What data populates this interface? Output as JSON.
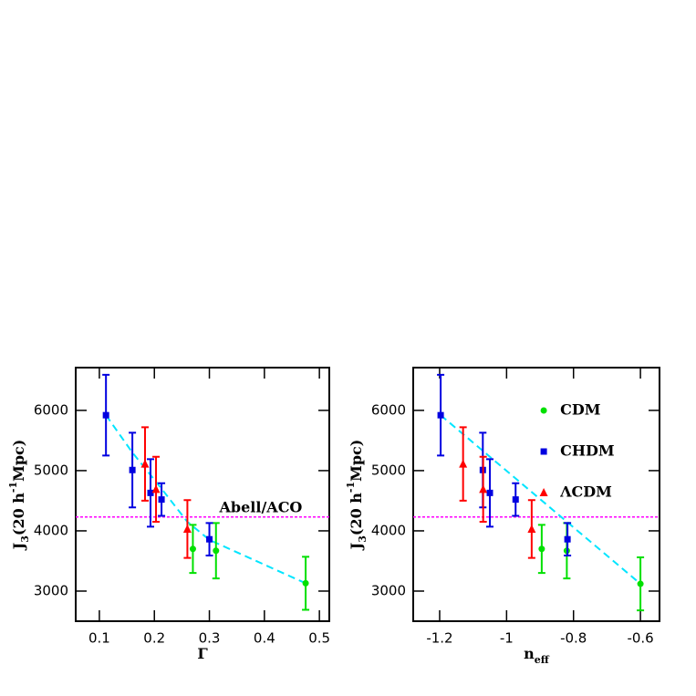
{
  "chart_data": [
    {
      "type": "scatter",
      "xlabel": [
        {
          "text": "Γ",
          "shift": "none"
        }
      ],
      "ylabel": [
        {
          "text": "J",
          "shift": "none"
        },
        {
          "text": "3",
          "shift": "sub"
        },
        {
          "text": "(20 h",
          "shift": "none"
        },
        {
          "text": "-1",
          "shift": "super"
        },
        {
          "text": "Mpc)",
          "shift": "none"
        }
      ],
      "xlim": [
        0.057,
        0.518
      ],
      "ylim": [
        2500,
        6710
      ],
      "xticks": [
        0.1,
        0.2,
        0.3,
        0.4,
        0.5
      ],
      "yticks": [
        3000,
        4000,
        5000,
        6000
      ],
      "annotation": "Abell/ACO",
      "hline": {
        "value": 4230,
        "color": "#ff00ff"
      },
      "fit": {
        "color": "#00e5ff",
        "x": [
          0.112,
          0.16,
          0.213,
          0.26,
          0.3,
          0.475
        ],
        "values": [
          5920,
          5300,
          4700,
          4150,
          3850,
          3130
        ]
      },
      "series": [
        {
          "name": "CDM",
          "color": "#00e000",
          "marker": "circle",
          "x": [
            0.27,
            0.312,
            0.475
          ],
          "values": [
            3700,
            3670,
            3130
          ],
          "errors": [
            400,
            460,
            440
          ]
        },
        {
          "name": "CHDM",
          "color": "#0000e0",
          "marker": "square",
          "x": [
            0.112,
            0.16,
            0.193,
            0.213,
            0.3
          ],
          "values": [
            5920,
            5010,
            4630,
            4520,
            3860
          ],
          "errors": [
            670,
            620,
            560,
            270,
            270
          ]
        },
        {
          "name": "ΛCDM",
          "color": "#ff0000",
          "marker": "triangle",
          "x": [
            0.183,
            0.203,
            0.26
          ],
          "values": [
            5110,
            4690,
            4030
          ],
          "errors": [
            610,
            540,
            480
          ]
        }
      ]
    },
    {
      "type": "scatter",
      "xlabel": [
        {
          "text": "n",
          "shift": "none"
        },
        {
          "text": "eff",
          "shift": "sub"
        }
      ],
      "ylabel": [
        {
          "text": "J",
          "shift": "none"
        },
        {
          "text": "3",
          "shift": "sub"
        },
        {
          "text": "(20 h",
          "shift": "none"
        },
        {
          "text": "-1",
          "shift": "super"
        },
        {
          "text": "Mpc)",
          "shift": "none"
        }
      ],
      "xlim": [
        -1.279,
        -0.543
      ],
      "ylim": [
        2500,
        6710
      ],
      "xticks": [
        -1.2,
        -1,
        -0.8,
        -0.6
      ],
      "yticks": [
        3000,
        4000,
        5000,
        6000
      ],
      "legend": "upper right",
      "hline": {
        "value": 4230,
        "color": "#ff00ff"
      },
      "fit": {
        "color": "#00e5ff",
        "x": [
          -1.197,
          -0.6
        ],
        "values": [
          5920,
          3120
        ]
      },
      "series": [
        {
          "name": "CDM",
          "color": "#00e000",
          "marker": "circle",
          "x": [
            -0.895,
            -0.82,
            -0.6
          ],
          "values": [
            3700,
            3670,
            3120
          ],
          "errors": [
            400,
            460,
            440
          ]
        },
        {
          "name": "CHDM",
          "color": "#0000e0",
          "marker": "square",
          "x": [
            -1.197,
            -1.071,
            -1.05,
            -0.973,
            -0.818
          ],
          "values": [
            5920,
            5010,
            4630,
            4520,
            3860
          ],
          "errors": [
            670,
            620,
            560,
            270,
            270
          ]
        },
        {
          "name": "ΛCDM",
          "color": "#ff0000",
          "marker": "triangle",
          "x": [
            -1.13,
            -1.07,
            -0.925
          ],
          "values": [
            5110,
            4690,
            4030
          ],
          "errors": [
            610,
            540,
            480
          ]
        }
      ]
    }
  ]
}
